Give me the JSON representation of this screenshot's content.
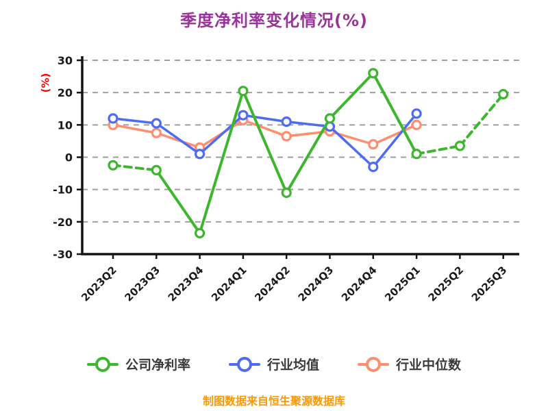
{
  "chart_data": {
    "type": "line",
    "title": "季度净利率变化情况(%)",
    "ylabel": "(%)",
    "footer": "制图数据来自恒生聚源数据库",
    "categories": [
      "2023Q2",
      "2023Q3",
      "2023Q4",
      "2024Q1",
      "2024Q2",
      "2024Q3",
      "2024Q4",
      "2025Q1",
      "2025Q2",
      "2025Q3"
    ],
    "ylim": [
      -30,
      30
    ],
    "ytick_step": 10,
    "grid": "horizontal-dashed",
    "legend_position": "bottom",
    "colors": {
      "axis": "#141414",
      "grid": "#9e9e9e",
      "title": "#993399",
      "ylabel": "#ff0000",
      "footer": "#ff9800",
      "legend_text": "#3a3a3a"
    },
    "series": [
      {
        "name": "公司净利率",
        "color": "#3cb72d",
        "width": 4,
        "values": [
          -2.5,
          -4,
          -23.5,
          20.5,
          -11,
          12,
          26,
          1,
          3.5,
          19.5
        ],
        "dashed_segments": [
          0,
          7,
          8
        ]
      },
      {
        "name": "行业均值",
        "color": "#4d6bf5",
        "width": 3.5,
        "values": [
          12,
          10.5,
          1,
          13,
          11,
          9.5,
          -3,
          13.5,
          null,
          null
        ],
        "dashed_segments": []
      },
      {
        "name": "行业中位数",
        "color": "#ff8d6e",
        "width": 3.5,
        "values": [
          10,
          7.5,
          3,
          11.5,
          6.5,
          8,
          4,
          10,
          null,
          null
        ],
        "dashed_segments": []
      }
    ]
  }
}
